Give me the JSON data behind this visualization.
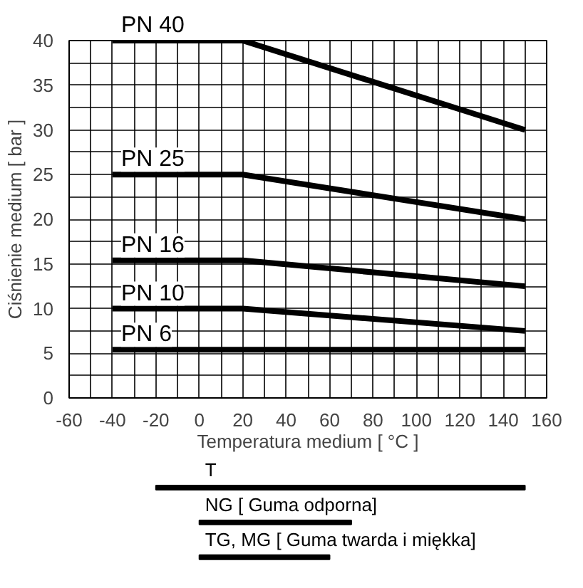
{
  "chart_data": [
    {
      "type": "line",
      "xlabel": "Temperatura medium [ °C ]",
      "ylabel": "Ciśnienie medium [ bar ]",
      "grid": true,
      "x": [
        -40,
        20,
        150
      ],
      "xlim": [
        -60,
        160
      ],
      "ylim": [
        0,
        40
      ],
      "xticks": [
        -60,
        {
          "value": -50,
          "label": null
        },
        -40,
        {
          "value": -30,
          "label": null
        },
        -20,
        {
          "value": -10,
          "label": null
        },
        0,
        {
          "value": 10,
          "label": null
        },
        20,
        {
          "value": 30,
          "label": null
        },
        40,
        {
          "value": 50,
          "label": null
        },
        60,
        {
          "value": 70,
          "label": null
        },
        80,
        {
          "value": 90,
          "label": null
        },
        100,
        {
          "value": 110,
          "label": null
        },
        120,
        {
          "value": 130,
          "label": null
        },
        140,
        {
          "value": 150,
          "label": null
        },
        160
      ],
      "yticks": [
        0,
        {
          "value": 2.5,
          "label": null
        },
        5,
        {
          "value": 7.5,
          "label": null
        },
        10,
        {
          "value": 12.5,
          "label": null
        },
        15,
        {
          "value": 17.5,
          "label": null
        },
        20,
        {
          "value": 22.5,
          "label": null
        },
        25,
        {
          "value": 27.5,
          "label": null
        },
        30,
        {
          "value": 32.5,
          "label": null
        },
        35,
        {
          "value": 37.5,
          "label": null
        },
        40
      ],
      "series": [
        {
          "name": "PN 40",
          "color": "#000000",
          "values": [
            40,
            40,
            30
          ]
        },
        {
          "name": "PN 25",
          "color": "#000000",
          "values": [
            25,
            25,
            20
          ]
        },
        {
          "name": "PN 16",
          "color": "#000000",
          "values": [
            15.4,
            15.4,
            12.5
          ]
        },
        {
          "name": "PN 10",
          "color": "#000000",
          "values": [
            10,
            10,
            7.5
          ]
        },
        {
          "name": "PN 6",
          "color": "#000000",
          "values": [
            5.4,
            5.4,
            5.4
          ]
        }
      ]
    },
    {
      "type": "bar",
      "orientation": "horizontal",
      "tick_labels": false,
      "xlim": [
        -60,
        160
      ],
      "categories": [
        "T",
        "NG [ Guma odporna]",
        "TG, MG [ Guma twarda i miękka]"
      ],
      "base": [
        -20,
        0,
        0
      ],
      "values": [
        170,
        70,
        60
      ],
      "color": "#000000"
    }
  ]
}
